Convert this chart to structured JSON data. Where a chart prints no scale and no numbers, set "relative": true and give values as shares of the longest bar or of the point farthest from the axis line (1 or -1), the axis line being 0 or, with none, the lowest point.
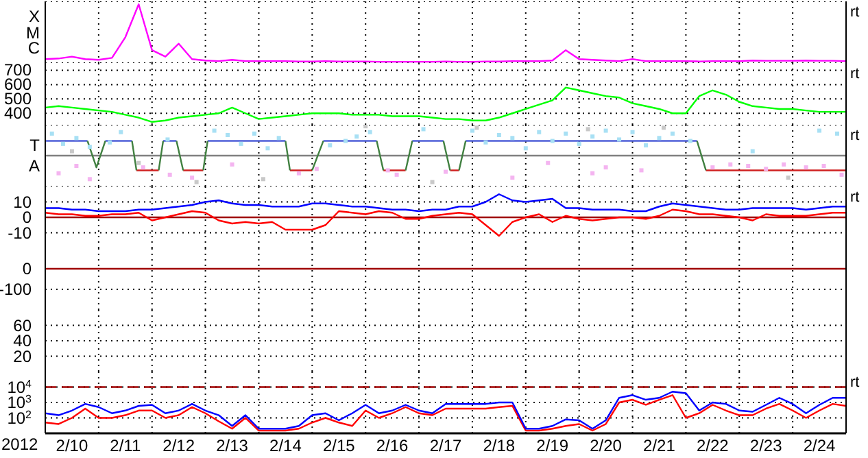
{
  "chart_data": [
    {
      "type": "line",
      "x": [
        "2012-02-10T00:00",
        "2012-02-10T06:00",
        "2012-02-10T12:00",
        "2012-02-10T18:00",
        "2012-02-11T00:00",
        "2012-02-11T06:00",
        "2012-02-11T12:00",
        "2012-02-11T18:00",
        "2012-02-12T00:00",
        "2012-02-12T06:00",
        "2012-02-12T12:00",
        "2012-02-12T18:00",
        "2012-02-13T00:00",
        "2012-02-13T06:00",
        "2012-02-13T12:00",
        "2012-02-13T18:00",
        "2012-02-14T00:00",
        "2012-02-14T06:00",
        "2012-02-14T12:00",
        "2012-02-14T18:00",
        "2012-02-15T00:00",
        "2012-02-15T06:00",
        "2012-02-15T12:00",
        "2012-02-15T18:00",
        "2012-02-16T00:00",
        "2012-02-16T06:00",
        "2012-02-16T12:00",
        "2012-02-16T18:00",
        "2012-02-17T00:00",
        "2012-02-17T06:00",
        "2012-02-17T12:00",
        "2012-02-17T18:00",
        "2012-02-18T00:00",
        "2012-02-18T06:00",
        "2012-02-18T12:00",
        "2012-02-18T18:00",
        "2012-02-19T00:00",
        "2012-02-19T06:00",
        "2012-02-19T12:00",
        "2012-02-19T18:00",
        "2012-02-20T00:00",
        "2012-02-20T06:00",
        "2012-02-20T12:00",
        "2012-02-20T18:00",
        "2012-02-21T00:00",
        "2012-02-21T06:00",
        "2012-02-21T12:00",
        "2012-02-21T18:00",
        "2012-02-22T00:00",
        "2012-02-22T06:00",
        "2012-02-22T12:00",
        "2012-02-22T18:00",
        "2012-02-23T00:00",
        "2012-02-23T06:00",
        "2012-02-23T12:00",
        "2012-02-23T18:00",
        "2012-02-24T00:00",
        "2012-02-24T06:00",
        "2012-02-24T12:00",
        "2012-02-24T18:00",
        "2012-02-25T00:00"
      ],
      "series": [
        {
          "color": "#ff00ff",
          "values": [
            0.067,
            0.078,
            0.11,
            0.067,
            0.056,
            0.089,
            0.44,
            1,
            0.22,
            0.11,
            0.33,
            0.067,
            0.044,
            0.033,
            0.056,
            0.033,
            0.033,
            0.033,
            0.033,
            0.028,
            0.028,
            0.033,
            0.028,
            0.028,
            0.028,
            0.022,
            0.022,
            0.022,
            0.022,
            0.022,
            0.028,
            0.022,
            0.022,
            0.028,
            0.028,
            0.033,
            0.033,
            0.033,
            0.044,
            0.22,
            0.067,
            0.056,
            0.044,
            0.033,
            0.067,
            0.033,
            0.033,
            0.033,
            0.033,
            0.028,
            0.033,
            0.033,
            0.033,
            0.044,
            0.039,
            0.039,
            0.039,
            0.044,
            0.039,
            0.039,
            0.033
          ]
        }
      ],
      "relative": true,
      "xlim": [
        "2012-02-10",
        "2012-02-25"
      ],
      "xticks": [
        {
          "value": "2012-02-11",
          "label": null
        },
        {
          "value": "2012-02-12",
          "label": null
        },
        {
          "value": "2012-02-13",
          "label": null
        },
        {
          "value": "2012-02-14",
          "label": null
        },
        {
          "value": "2012-02-15",
          "label": null
        },
        {
          "value": "2012-02-16",
          "label": null
        },
        {
          "value": "2012-02-17",
          "label": null
        },
        {
          "value": "2012-02-18",
          "label": null
        },
        {
          "value": "2012-02-19",
          "label": null
        },
        {
          "value": "2012-02-20",
          "label": null
        },
        {
          "value": "2012-02-21",
          "label": null
        },
        {
          "value": "2012-02-22",
          "label": null
        },
        {
          "value": "2012-02-23",
          "label": null
        },
        {
          "value": "2012-02-24",
          "label": null
        }
      ],
      "grid": true,
      "marker": "none",
      "line_style": "solid",
      "tick_labels": "y",
      "annotations": [
        "X",
        "M",
        "C",
        "rt"
      ]
    },
    {
      "type": "line",
      "x": [
        "2012-02-10T00:00",
        "2012-02-10T06:00",
        "2012-02-10T12:00",
        "2012-02-10T18:00",
        "2012-02-11T00:00",
        "2012-02-11T06:00",
        "2012-02-11T12:00",
        "2012-02-11T18:00",
        "2012-02-12T00:00",
        "2012-02-12T06:00",
        "2012-02-12T12:00",
        "2012-02-12T18:00",
        "2012-02-13T00:00",
        "2012-02-13T06:00",
        "2012-02-13T12:00",
        "2012-02-13T18:00",
        "2012-02-14T00:00",
        "2012-02-14T06:00",
        "2012-02-14T12:00",
        "2012-02-14T18:00",
        "2012-02-15T00:00",
        "2012-02-15T06:00",
        "2012-02-15T12:00",
        "2012-02-15T18:00",
        "2012-02-16T00:00",
        "2012-02-16T06:00",
        "2012-02-16T12:00",
        "2012-02-16T18:00",
        "2012-02-17T00:00",
        "2012-02-17T06:00",
        "2012-02-17T12:00",
        "2012-02-17T18:00",
        "2012-02-18T00:00",
        "2012-02-18T06:00",
        "2012-02-18T12:00",
        "2012-02-18T18:00",
        "2012-02-19T00:00",
        "2012-02-19T06:00",
        "2012-02-19T12:00",
        "2012-02-19T18:00",
        "2012-02-20T00:00",
        "2012-02-20T06:00",
        "2012-02-20T12:00",
        "2012-02-20T18:00",
        "2012-02-21T00:00",
        "2012-02-21T06:00",
        "2012-02-21T12:00",
        "2012-02-21T18:00",
        "2012-02-22T00:00",
        "2012-02-22T06:00",
        "2012-02-22T12:00",
        "2012-02-22T18:00",
        "2012-02-23T00:00",
        "2012-02-23T06:00",
        "2012-02-23T12:00",
        "2012-02-23T18:00",
        "2012-02-24T00:00",
        "2012-02-24T06:00",
        "2012-02-24T12:00",
        "2012-02-24T18:00",
        "2012-02-25T00:00"
      ],
      "series": [
        {
          "color": "#00ff00",
          "values": [
            440,
            450,
            440,
            430,
            420,
            410,
            390,
            370,
            340,
            350,
            370,
            380,
            390,
            400,
            440,
            400,
            360,
            370,
            380,
            390,
            400,
            400,
            400,
            390,
            390,
            390,
            380,
            380,
            380,
            370,
            360,
            360,
            350,
            350,
            370,
            400,
            430,
            460,
            490,
            580,
            560,
            540,
            520,
            510,
            470,
            450,
            430,
            400,
            400,
            520,
            560,
            530,
            480,
            450,
            440,
            430,
            430,
            420,
            410,
            410,
            410
          ]
        }
      ],
      "ylim": [
        320,
        750
      ],
      "yticks": [
        400,
        500,
        600,
        700
      ],
      "xlim": [
        "2012-02-10",
        "2012-02-25"
      ],
      "xticks": [
        {
          "value": "2012-02-11",
          "label": null
        },
        {
          "value": "2012-02-12",
          "label": null
        },
        {
          "value": "2012-02-13",
          "label": null
        },
        {
          "value": "2012-02-14",
          "label": null
        },
        {
          "value": "2012-02-15",
          "label": null
        },
        {
          "value": "2012-02-16",
          "label": null
        },
        {
          "value": "2012-02-17",
          "label": null
        },
        {
          "value": "2012-02-18",
          "label": null
        },
        {
          "value": "2012-02-19",
          "label": null
        },
        {
          "value": "2012-02-20",
          "label": null
        },
        {
          "value": "2012-02-21",
          "label": null
        },
        {
          "value": "2012-02-22",
          "label": null
        },
        {
          "value": "2012-02-23",
          "label": null
        },
        {
          "value": "2012-02-24",
          "label": null
        }
      ],
      "grid": true,
      "marker": "none",
      "line_style": "solid",
      "tick_labels": "y",
      "annotations": [
        "rt"
      ]
    },
    {
      "type": "line",
      "x": [
        "2012-02-10T00:00",
        "2012-02-10T19:00",
        "2012-02-10T23:00",
        "2012-02-11T03:00",
        "2012-02-11T15:00",
        "2012-02-11T17:00",
        "2012-02-12T03:00",
        "2012-02-12T05:00",
        "2012-02-12T11:00",
        "2012-02-12T14:00",
        "2012-02-12T23:00",
        "2012-02-13T01:00",
        "2012-02-14T12:00",
        "2012-02-14T14:00",
        "2012-02-15T00:00",
        "2012-02-15T05:00",
        "2012-02-16T05:00",
        "2012-02-16T08:00",
        "2012-02-16T18:00",
        "2012-02-16T21:00",
        "2012-02-17T11:00",
        "2012-02-17T14:00",
        "2012-02-17T18:00",
        "2012-02-17T21:00",
        "2012-02-22T05:00",
        "2012-02-22T09:00",
        "2012-02-25T00:00"
      ],
      "series": [
        {
          "type": "scatter",
          "marker": "square",
          "color": "#a8e0f4",
          "x": [
            "2012-02-10T03:00",
            "2012-02-10T08:00",
            "2012-02-10T14:00",
            "2012-02-10T20:00",
            "2012-02-11T05:00",
            "2012-02-11T10:00",
            "2012-02-12T07:00",
            "2012-02-13T04:00",
            "2012-02-13T10:00",
            "2012-02-13T16:00",
            "2012-02-13T22:00",
            "2012-02-14T04:00",
            "2012-02-14T09:00",
            "2012-02-15T08:00",
            "2012-02-15T15:00",
            "2012-02-15T20:00",
            "2012-02-16T02:00",
            "2012-02-17T02:00",
            "2012-02-18T00:00",
            "2012-02-18T06:00",
            "2012-02-18T12:00",
            "2012-02-18T18:00",
            "2012-02-19T00:00",
            "2012-02-19T06:00",
            "2012-02-19T12:00",
            "2012-02-19T18:00",
            "2012-02-20T00:00",
            "2012-02-20T06:00",
            "2012-02-20T12:00",
            "2012-02-20T18:00",
            "2012-02-21T00:00",
            "2012-02-21T06:00",
            "2012-02-21T12:00",
            "2012-02-21T18:00",
            "2012-02-22T02:00",
            "2012-02-23T06:00",
            "2012-02-24T12:00",
            "2012-02-24T20:00"
          ],
          "values": [
            0.75,
            0.4,
            0.6,
            0.3,
            0.45,
            0.8,
            0.55,
            0.85,
            0.7,
            0.4,
            0.75,
            0.25,
            0.6,
            0.35,
            0.5,
            0.65,
            0.8,
            0.9,
            0.85,
            0.45,
            0.7,
            0.6,
            0.25,
            0.8,
            0.5,
            0.75,
            0.4,
            0.65,
            0.85,
            0.55,
            0.8,
            0.35,
            0.6,
            0.75,
            0.5,
            0.15,
            0.85,
            0.75
          ]
        },
        {
          "type": "scatter",
          "marker": "square",
          "color": "#f4b4f0",
          "x": [
            "2012-02-10T06:00",
            "2012-02-10T14:00",
            "2012-02-10T20:00",
            "2012-02-11T20:00",
            "2012-02-12T08:00",
            "2012-02-12T18:00",
            "2012-02-13T12:00",
            "2012-02-14T18:00",
            "2012-02-15T02:00",
            "2012-02-16T10:00",
            "2012-02-16T14:00",
            "2012-02-17T12:00",
            "2012-02-18T18:00",
            "2012-02-19T10:00",
            "2012-02-20T06:00",
            "2012-02-20T12:00",
            "2012-02-21T04:00",
            "2012-02-22T12:00",
            "2012-02-22T20:00",
            "2012-02-23T04:00",
            "2012-02-23T12:00",
            "2012-02-23T20:00",
            "2012-02-24T06:00",
            "2012-02-24T14:00",
            "2012-02-24T22:00"
          ],
          "values": [
            -0.6,
            -0.35,
            -0.8,
            -0.4,
            -0.65,
            -0.75,
            -0.3,
            -0.6,
            -0.45,
            -0.5,
            -0.65,
            -0.55,
            -0.75,
            -0.25,
            -0.6,
            -0.4,
            -0.5,
            -0.4,
            -0.3,
            -0.35,
            -0.45,
            -0.3,
            -0.4,
            -0.35,
            -0.65
          ]
        },
        {
          "type": "scatter",
          "marker": "square",
          "color": "#c8c8c8",
          "x": [
            "2012-02-10T12:00",
            "2012-02-11T18:00",
            "2012-02-12T20:00",
            "2012-02-14T02:00",
            "2012-02-16T00:00",
            "2012-02-17T06:00",
            "2012-02-18T02:00",
            "2012-02-20T04:00",
            "2012-02-21T14:00",
            "2012-02-23T22:00"
          ],
          "values": [
            0.15,
            -0.25,
            -0.9,
            -0.8,
            1,
            -0.9,
            0.95,
            0.9,
            0.95,
            -0.75
          ]
        },
        {
          "color": "#5060d8",
          "values": [
            0.5,
            0.5,
            null,
            0.5,
            0.5,
            null,
            null,
            0.5,
            0.5,
            null,
            null,
            0.5,
            0.5,
            null,
            null,
            0.5,
            0.5,
            null,
            null,
            0.5,
            0.5,
            null,
            null,
            0.5,
            0.5,
            null,
            null
          ]
        },
        {
          "color": "#d02020",
          "values": [
            null,
            null,
            null,
            null,
            null,
            -0.5,
            -0.5,
            null,
            null,
            -0.5,
            -0.5,
            null,
            null,
            -0.5,
            -0.5,
            null,
            null,
            -0.5,
            -0.5,
            null,
            null,
            -0.5,
            -0.5,
            null,
            null,
            -0.5,
            -0.5
          ]
        },
        {
          "color": "#408040",
          "x": [
            "2012-02-10T19:00",
            "2012-02-10T23:00",
            "2012-02-11T03:00",
            "2012-02-11T09:00",
            "2012-02-11T15:00",
            "2012-02-11T17:00",
            "2012-02-11T22:00",
            "2012-02-12T03:00",
            "2012-02-12T05:00",
            "2012-02-12T08:00",
            "2012-02-12T11:00",
            "2012-02-12T14:00",
            "2012-02-12T18:00",
            "2012-02-12T23:00",
            "2012-02-13T01:00",
            "2012-02-13T12:00",
            "2012-02-14T12:00",
            "2012-02-14T14:00",
            "2012-02-14T19:00",
            "2012-02-15T00:00",
            "2012-02-15T05:00",
            "2012-02-15T17:00",
            "2012-02-16T05:00",
            "2012-02-16T08:00",
            "2012-02-16T13:00",
            "2012-02-16T18:00",
            "2012-02-16T21:00",
            "2012-02-17T04:00",
            "2012-02-17T11:00",
            "2012-02-17T14:00",
            "2012-02-17T16:00",
            "2012-02-17T18:00",
            "2012-02-17T21:00",
            "2012-02-20T00:00",
            "2012-02-22T05:00",
            "2012-02-22T09:00"
          ],
          "values": [
            0.5,
            -0.4,
            0.5,
            null,
            0.5,
            -0.5,
            null,
            -0.5,
            0.5,
            null,
            0.5,
            -0.5,
            null,
            -0.5,
            0.5,
            null,
            0.5,
            -0.5,
            null,
            -0.5,
            0.5,
            null,
            0.5,
            -0.5,
            null,
            -0.5,
            0.5,
            null,
            0.5,
            -0.5,
            null,
            -0.5,
            0.5,
            null,
            0.5,
            -0.5
          ]
        }
      ],
      "relative": true,
      "ref_lines": [
        {
          "axis": "y",
          "value": 0,
          "color": "#808080",
          "line_style": "solid"
        }
      ],
      "xlim": [
        "2012-02-10",
        "2012-02-25"
      ],
      "xticks": [
        {
          "value": "2012-02-11",
          "label": null
        },
        {
          "value": "2012-02-12",
          "label": null
        },
        {
          "value": "2012-02-13",
          "label": null
        },
        {
          "value": "2012-02-14",
          "label": null
        },
        {
          "value": "2012-02-15",
          "label": null
        },
        {
          "value": "2012-02-16",
          "label": null
        },
        {
          "value": "2012-02-17",
          "label": null
        },
        {
          "value": "2012-02-18",
          "label": null
        },
        {
          "value": "2012-02-19",
          "label": null
        },
        {
          "value": "2012-02-20",
          "label": null
        },
        {
          "value": "2012-02-21",
          "label": null
        },
        {
          "value": "2012-02-22",
          "label": null
        },
        {
          "value": "2012-02-23",
          "label": null
        },
        {
          "value": "2012-02-24",
          "label": null
        }
      ],
      "grid": true,
      "marker": "none",
      "line_style": "solid",
      "tick_labels": "y",
      "annotations": [
        "T",
        "A",
        "rt"
      ]
    },
    {
      "type": "line",
      "x": [
        "2012-02-10T00:00",
        "2012-02-10T06:00",
        "2012-02-10T12:00",
        "2012-02-10T18:00",
        "2012-02-11T00:00",
        "2012-02-11T06:00",
        "2012-02-11T12:00",
        "2012-02-11T18:00",
        "2012-02-12T00:00",
        "2012-02-12T06:00",
        "2012-02-12T12:00",
        "2012-02-12T18:00",
        "2012-02-13T00:00",
        "2012-02-13T06:00",
        "2012-02-13T12:00",
        "2012-02-13T18:00",
        "2012-02-14T00:00",
        "2012-02-14T06:00",
        "2012-02-14T12:00",
        "2012-02-14T18:00",
        "2012-02-15T00:00",
        "2012-02-15T06:00",
        "2012-02-15T12:00",
        "2012-02-15T18:00",
        "2012-02-16T00:00",
        "2012-02-16T06:00",
        "2012-02-16T12:00",
        "2012-02-16T18:00",
        "2012-02-17T00:00",
        "2012-02-17T06:00",
        "2012-02-17T12:00",
        "2012-02-17T18:00",
        "2012-02-18T00:00",
        "2012-02-18T06:00",
        "2012-02-18T12:00",
        "2012-02-18T18:00",
        "2012-02-19T00:00",
        "2012-02-19T06:00",
        "2012-02-19T12:00",
        "2012-02-19T18:00",
        "2012-02-20T00:00",
        "2012-02-20T06:00",
        "2012-02-20T12:00",
        "2012-02-20T18:00",
        "2012-02-21T00:00",
        "2012-02-21T06:00",
        "2012-02-21T12:00",
        "2012-02-21T18:00",
        "2012-02-22T00:00",
        "2012-02-22T06:00",
        "2012-02-22T12:00",
        "2012-02-22T18:00",
        "2012-02-23T00:00",
        "2012-02-23T06:00",
        "2012-02-23T12:00",
        "2012-02-23T18:00",
        "2012-02-24T00:00",
        "2012-02-24T06:00",
        "2012-02-24T12:00",
        "2012-02-24T18:00",
        "2012-02-25T00:00"
      ],
      "series": [
        {
          "color": "#0000ff",
          "values": [
            6,
            6,
            5,
            5,
            4,
            4,
            4,
            5,
            5,
            6,
            7,
            8,
            10,
            11,
            9,
            8,
            8,
            7,
            7,
            7,
            9,
            9,
            8,
            7,
            7,
            6,
            5,
            5,
            4,
            5,
            5,
            7,
            7,
            10,
            15,
            11,
            10,
            11,
            12,
            6,
            6,
            5,
            5,
            5,
            4,
            4,
            7,
            9,
            8,
            7,
            6,
            5,
            5,
            6,
            6,
            6,
            6,
            5,
            6,
            7,
            7
          ]
        },
        {
          "color": "#ff0000",
          "values": [
            3,
            2,
            2,
            1,
            1,
            2,
            2,
            3,
            -2,
            0,
            2,
            4,
            3,
            -2,
            -4,
            -3,
            -4,
            -3,
            -8,
            -8,
            -8,
            -5,
            4,
            3,
            2,
            4,
            3,
            -1,
            -1,
            1,
            2,
            3,
            2,
            -5,
            -12,
            -3,
            0,
            2,
            -3,
            1,
            -1,
            -2,
            -1,
            0,
            0,
            -1,
            1,
            5,
            4,
            2,
            2,
            1,
            0,
            -2,
            2,
            1,
            1,
            1,
            2,
            3,
            3
          ]
        }
      ],
      "ylim": [
        -20,
        20
      ],
      "yticks": [
        -10,
        0,
        10
      ],
      "ref_lines": [
        {
          "axis": "y",
          "value": 0,
          "color": "#a00000",
          "line_style": "solid"
        }
      ],
      "xlim": [
        "2012-02-10",
        "2012-02-25"
      ],
      "xticks": [
        {
          "value": "2012-02-11",
          "label": null
        },
        {
          "value": "2012-02-12",
          "label": null
        },
        {
          "value": "2012-02-13",
          "label": null
        },
        {
          "value": "2012-02-14",
          "label": null
        },
        {
          "value": "2012-02-15",
          "label": null
        },
        {
          "value": "2012-02-16",
          "label": null
        },
        {
          "value": "2012-02-17",
          "label": null
        },
        {
          "value": "2012-02-18",
          "label": null
        },
        {
          "value": "2012-02-19",
          "label": null
        },
        {
          "value": "2012-02-20",
          "label": null
        },
        {
          "value": "2012-02-21",
          "label": null
        },
        {
          "value": "2012-02-22",
          "label": null
        },
        {
          "value": "2012-02-23",
          "label": null
        },
        {
          "value": "2012-02-24",
          "label": null
        }
      ],
      "grid": true,
      "marker": "none",
      "line_style": "solid",
      "tick_labels": "y",
      "annotations": [
        "rt"
      ]
    },
    {
      "type": "line",
      "ylim": [
        -200,
        100
      ],
      "yticks": [
        -100,
        0
      ],
      "ref_lines": [
        {
          "axis": "y",
          "value": 0,
          "color": "#a00000",
          "line_style": "solid"
        }
      ],
      "xlim": [
        "2012-02-10",
        "2012-02-25"
      ],
      "xticks": [
        {
          "value": "2012-02-11",
          "label": null
        },
        {
          "value": "2012-02-12",
          "label": null
        },
        {
          "value": "2012-02-13",
          "label": null
        },
        {
          "value": "2012-02-14",
          "label": null
        },
        {
          "value": "2012-02-15",
          "label": null
        },
        {
          "value": "2012-02-16",
          "label": null
        },
        {
          "value": "2012-02-17",
          "label": null
        },
        {
          "value": "2012-02-18",
          "label": null
        },
        {
          "value": "2012-02-19",
          "label": null
        },
        {
          "value": "2012-02-20",
          "label": null
        },
        {
          "value": "2012-02-21",
          "label": null
        },
        {
          "value": "2012-02-22",
          "label": null
        },
        {
          "value": "2012-02-23",
          "label": null
        },
        {
          "value": "2012-02-24",
          "label": null
        }
      ],
      "grid": true,
      "tick_labels": "y"
    },
    {
      "type": "line",
      "ylim": [
        0,
        80
      ],
      "yticks": [
        20,
        40,
        60
      ],
      "xlim": [
        "2012-02-10",
        "2012-02-25"
      ],
      "xticks": [
        {
          "value": "2012-02-11",
          "label": null
        },
        {
          "value": "2012-02-12",
          "label": null
        },
        {
          "value": "2012-02-13",
          "label": null
        },
        {
          "value": "2012-02-14",
          "label": null
        },
        {
          "value": "2012-02-15",
          "label": null
        },
        {
          "value": "2012-02-16",
          "label": null
        },
        {
          "value": "2012-02-17",
          "label": null
        },
        {
          "value": "2012-02-18",
          "label": null
        },
        {
          "value": "2012-02-19",
          "label": null
        },
        {
          "value": "2012-02-20",
          "label": null
        },
        {
          "value": "2012-02-21",
          "label": null
        },
        {
          "value": "2012-02-22",
          "label": null
        },
        {
          "value": "2012-02-23",
          "label": null
        },
        {
          "value": "2012-02-24",
          "label": null
        }
      ],
      "grid": true,
      "tick_labels": "y"
    },
    {
      "type": "line",
      "x": [
        "2012-02-10T00:00",
        "2012-02-10T06:00",
        "2012-02-10T12:00",
        "2012-02-10T18:00",
        "2012-02-11T00:00",
        "2012-02-11T06:00",
        "2012-02-11T12:00",
        "2012-02-11T18:00",
        "2012-02-12T00:00",
        "2012-02-12T06:00",
        "2012-02-12T12:00",
        "2012-02-12T18:00",
        "2012-02-13T00:00",
        "2012-02-13T06:00",
        "2012-02-13T12:00",
        "2012-02-13T18:00",
        "2012-02-14T00:00",
        "2012-02-14T06:00",
        "2012-02-14T12:00",
        "2012-02-14T18:00",
        "2012-02-15T00:00",
        "2012-02-15T06:00",
        "2012-02-15T12:00",
        "2012-02-15T18:00",
        "2012-02-16T00:00",
        "2012-02-16T06:00",
        "2012-02-16T12:00",
        "2012-02-16T18:00",
        "2012-02-17T00:00",
        "2012-02-17T06:00",
        "2012-02-17T12:00",
        "2012-02-17T18:00",
        "2012-02-18T00:00",
        "2012-02-18T06:00",
        "2012-02-18T12:00",
        "2012-02-18T18:00",
        "2012-02-19T00:00",
        "2012-02-19T06:00",
        "2012-02-19T12:00",
        "2012-02-19T18:00",
        "2012-02-20T00:00",
        "2012-02-20T06:00",
        "2012-02-20T12:00",
        "2012-02-20T18:00",
        "2012-02-21T00:00",
        "2012-02-21T06:00",
        "2012-02-21T12:00",
        "2012-02-21T18:00",
        "2012-02-22T00:00",
        "2012-02-22T06:00",
        "2012-02-22T12:00",
        "2012-02-22T18:00",
        "2012-02-23T00:00",
        "2012-02-23T06:00",
        "2012-02-23T12:00",
        "2012-02-23T18:00",
        "2012-02-24T00:00",
        "2012-02-24T06:00",
        "2012-02-24T12:00",
        "2012-02-24T18:00",
        "2012-02-25T00:00"
      ],
      "series": [
        {
          "color": "#ff0000",
          "values": [
            50,
            40,
            100,
            400,
            100,
            100,
            150,
            300,
            300,
            100,
            150,
            500,
            200,
            60,
            20,
            100,
            15,
            15,
            15,
            20,
            50,
            100,
            50,
            30,
            300,
            100,
            200,
            500,
            200,
            150,
            400,
            400,
            400,
            400,
            500,
            600,
            15,
            15,
            20,
            30,
            40,
            15,
            40,
            1000,
            1500,
            700,
            1500,
            3000,
            100,
            200,
            700,
            300,
            150,
            150,
            400,
            800,
            300,
            100,
            300,
            800,
            600
          ]
        },
        {
          "color": "#0000ff",
          "values": [
            200,
            150,
            300,
            800,
            500,
            200,
            300,
            600,
            700,
            200,
            300,
            800,
            300,
            150,
            30,
            150,
            20,
            20,
            20,
            30,
            150,
            200,
            70,
            200,
            700,
            200,
            300,
            700,
            300,
            200,
            800,
            800,
            800,
            800,
            1000,
            1000,
            20,
            20,
            30,
            80,
            70,
            20,
            70,
            2000,
            3000,
            1500,
            2000,
            5000,
            4000,
            300,
            1000,
            800,
            300,
            250,
            700,
            2000,
            800,
            200,
            700,
            2000,
            2000
          ]
        }
      ],
      "log": "y",
      "ylim": [
        10,
        100000
      ],
      "yticks": [
        {
          "value": 100,
          "label": "10$^{2}$"
        },
        {
          "value": 1000,
          "label": "10$^{3}$"
        },
        {
          "value": 10000,
          "label": "10$^{4}$"
        }
      ],
      "ref_lines": [
        {
          "axis": "y",
          "value": 10000,
          "color": "#a00000",
          "line_style": "dashed"
        }
      ],
      "xlabel": "2012",
      "xlim": [
        "2012-02-10",
        "2012-02-25"
      ],
      "xticks": [
        {
          "value": "2012-02-10T12:00",
          "label": "2/10"
        },
        {
          "value": "2012-02-11",
          "label": null
        },
        {
          "value": "2012-02-11T12:00",
          "label": "2/11"
        },
        {
          "value": "2012-02-12",
          "label": null
        },
        {
          "value": "2012-02-12T12:00",
          "label": "2/12"
        },
        {
          "value": "2012-02-13",
          "label": null
        },
        {
          "value": "2012-02-13T12:00",
          "label": "2/13"
        },
        {
          "value": "2012-02-14",
          "label": null
        },
        {
          "value": "2012-02-14T12:00",
          "label": "2/14"
        },
        {
          "value": "2012-02-15",
          "label": null
        },
        {
          "value": "2012-02-15T12:00",
          "label": "2/15"
        },
        {
          "value": "2012-02-16",
          "label": null
        },
        {
          "value": "2012-02-16T12:00",
          "label": "2/16"
        },
        {
          "value": "2012-02-17",
          "label": null
        },
        {
          "value": "2012-02-17T12:00",
          "label": "2/17"
        },
        {
          "value": "2012-02-18",
          "label": null
        },
        {
          "value": "2012-02-18T12:00",
          "label": "2/18"
        },
        {
          "value": "2012-02-19",
          "label": null
        },
        {
          "value": "2012-02-19T12:00",
          "label": "2/19"
        },
        {
          "value": "2012-02-20",
          "label": null
        },
        {
          "value": "2012-02-20T12:00",
          "label": "2/20"
        },
        {
          "value": "2012-02-21",
          "label": null
        },
        {
          "value": "2012-02-21T12:00",
          "label": "2/21"
        },
        {
          "value": "2012-02-22",
          "label": null
        },
        {
          "value": "2012-02-22T12:00",
          "label": "2/22"
        },
        {
          "value": "2012-02-23",
          "label": null
        },
        {
          "value": "2012-02-23T12:00",
          "label": "2/23"
        },
        {
          "value": "2012-02-24",
          "label": null
        },
        {
          "value": "2012-02-24T12:00",
          "label": "2/24"
        }
      ],
      "grid": true,
      "marker": "none",
      "line_style": "solid",
      "annotations": [
        "rt"
      ]
    }
  ]
}
